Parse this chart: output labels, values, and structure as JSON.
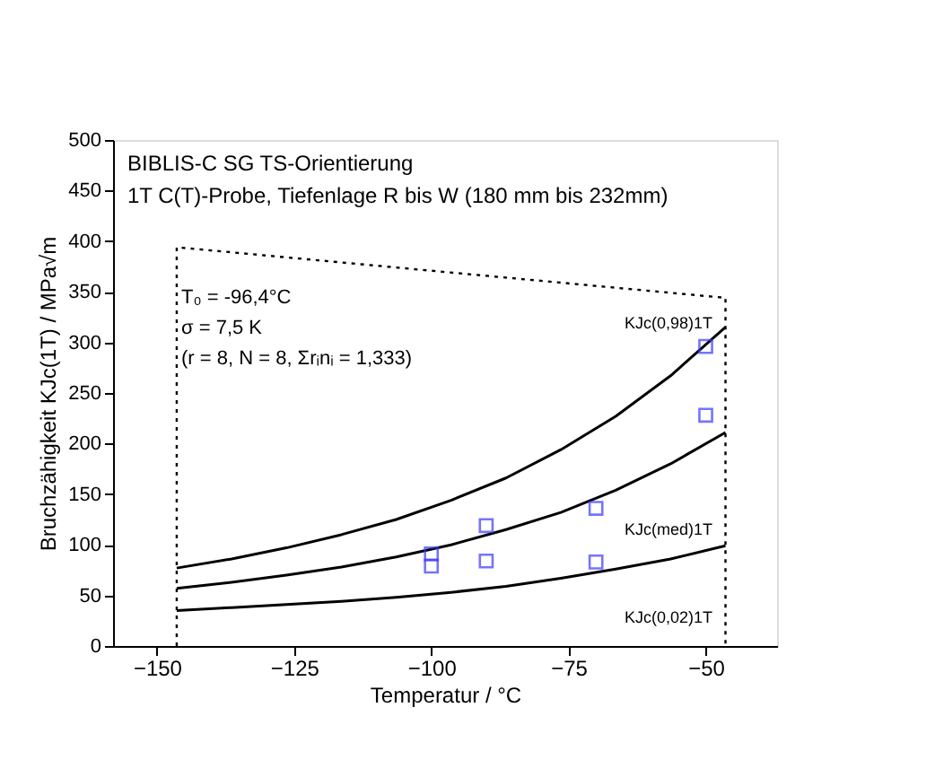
{
  "chart_data": {
    "type": "line",
    "title": "BIBLIS-C SG TS-Orientierung",
    "subtitle": "1T C(T)-Probe, Tiefenlage R bis W (180 mm bis 232mm)",
    "xlabel": "Temperatur / °C",
    "ylabel": "Bruchzähigkeit KJc(1T) / MPa√m",
    "xlim": [
      -158,
      -37
    ],
    "xticks": [
      -150,
      -125,
      -100,
      -75,
      -50
    ],
    "ylim": [
      0,
      500
    ],
    "yticks": [
      0,
      50,
      100,
      150,
      200,
      250,
      300,
      350,
      400,
      450,
      500
    ],
    "grid": false,
    "series": [
      {
        "type": "line",
        "color": "#000000",
        "line_style": "solid",
        "x": [
          -146.4,
          -136.4,
          -126.4,
          -116.4,
          -106.4,
          -96.4,
          -86.4,
          -76.4,
          -66.4,
          -56.4,
          -46.4
        ],
        "values": [
          77,
          86,
          97,
          110,
          125,
          144,
          166,
          194,
          227,
          267,
          315
        ]
      },
      {
        "type": "line",
        "color": "#000000",
        "line_style": "solid",
        "x": [
          -146.4,
          -136.4,
          -126.4,
          -116.4,
          -106.4,
          -96.4,
          -86.4,
          -76.4,
          -66.4,
          -56.4,
          -46.4
        ],
        "values": [
          57,
          63,
          70,
          78,
          88,
          100,
          115,
          132,
          154,
          180,
          211
        ]
      },
      {
        "type": "line",
        "color": "#000000",
        "line_style": "solid",
        "x": [
          -146.4,
          -136.4,
          -126.4,
          -116.4,
          -106.4,
          -96.4,
          -86.4,
          -76.4,
          -66.4,
          -56.4,
          -46.4
        ],
        "values": [
          35,
          38,
          41,
          44,
          48,
          53,
          59,
          67,
          76,
          86,
          99
        ]
      },
      {
        "type": "line",
        "color": "#000000",
        "line_style": "dotted",
        "x": [
          -146.4,
          -146.4,
          -46.4,
          -46.4
        ],
        "values": [
          0,
          394,
          344,
          0
        ]
      },
      {
        "type": "scatter",
        "color": "#3a3aff",
        "marker": "square",
        "x": [
          -100,
          -100,
          -90,
          -90,
          -70,
          -70,
          -50,
          -50
        ],
        "values": [
          79,
          91,
          84,
          119,
          83,
          136,
          296,
          228
        ]
      }
    ],
    "annotations": [
      "T₀ = -96,4°C",
      "σ = 7,5 K",
      "(r = 8, N = 8, Σrᵢnᵢ = 1,333)",
      "KJc(0,98)1T",
      "KJc(med)1T",
      "KJc(0,02)1T"
    ]
  }
}
